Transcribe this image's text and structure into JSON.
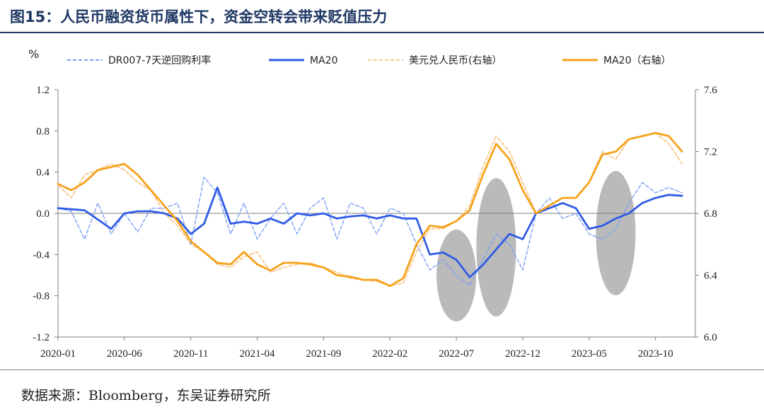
{
  "header": {
    "title": "图15：人民币融资货币属性下，资金空转会带来贬值压力"
  },
  "footer": {
    "source": "数据来源：Bloomberg，东吴证券研究所"
  },
  "colors": {
    "dr007": "#7b9ff5",
    "dr007_ma": "#2f5ce6",
    "fx": "#f7c98c",
    "fx_ma": "#f5a21b",
    "highlight": "#a6a6a6",
    "axis": "#7f7f7f"
  },
  "chart_data": {
    "type": "line",
    "left_unit": "%",
    "x_tick_labels": [
      "2020-01",
      "2020-06",
      "2020-11",
      "2021-04",
      "2021-09",
      "2022-02",
      "2022-07",
      "2022-12",
      "2023-05",
      "2023-10"
    ],
    "x_range": [
      "2020-01",
      "2023-12"
    ],
    "y_left": {
      "min": -1.2,
      "max": 1.2,
      "ticks": [
        "-1.2",
        "-0.8",
        "-0.4",
        "0.0",
        "0.4",
        "0.8",
        "1.2"
      ]
    },
    "y_right": {
      "min": 6.0,
      "max": 7.6,
      "ticks": [
        "6.0",
        "6.4",
        "6.8",
        "7.2",
        "7.6"
      ]
    },
    "legend_position": "top",
    "series": [
      {
        "name": "DR007-7天逆回购利率",
        "axis": "left",
        "style": "dashed",
        "points": [
          [
            "2020-01",
            0.05
          ],
          [
            "2020-02",
            0.02
          ],
          [
            "2020-03",
            -0.25
          ],
          [
            "2020-04",
            0.1
          ],
          [
            "2020-05",
            -0.2
          ],
          [
            "2020-06",
            0.0
          ],
          [
            "2020-07",
            -0.18
          ],
          [
            "2020-08",
            0.05
          ],
          [
            "2020-09",
            0.05
          ],
          [
            "2020-10",
            0.1
          ],
          [
            "2020-11",
            -0.3
          ],
          [
            "2020-12",
            0.35
          ],
          [
            "2021-01",
            0.2
          ],
          [
            "2021-02",
            -0.2
          ],
          [
            "2021-03",
            0.1
          ],
          [
            "2021-04",
            -0.25
          ],
          [
            "2021-05",
            -0.05
          ],
          [
            "2021-06",
            0.1
          ],
          [
            "2021-07",
            -0.2
          ],
          [
            "2021-08",
            0.05
          ],
          [
            "2021-09",
            0.15
          ],
          [
            "2021-10",
            -0.25
          ],
          [
            "2021-11",
            0.1
          ],
          [
            "2021-12",
            0.05
          ],
          [
            "2022-01",
            -0.2
          ],
          [
            "2022-02",
            0.05
          ],
          [
            "2022-03",
            0.0
          ],
          [
            "2022-04",
            -0.3
          ],
          [
            "2022-05",
            -0.55
          ],
          [
            "2022-06",
            -0.45
          ],
          [
            "2022-07",
            -0.6
          ],
          [
            "2022-08",
            -0.7
          ],
          [
            "2022-09",
            -0.45
          ],
          [
            "2022-10",
            -0.2
          ],
          [
            "2022-11",
            -0.3
          ],
          [
            "2022-12",
            -0.55
          ],
          [
            "2023-01",
            0.0
          ],
          [
            "2023-02",
            0.15
          ],
          [
            "2023-03",
            -0.05
          ],
          [
            "2023-04",
            0.0
          ],
          [
            "2023-05",
            -0.2
          ],
          [
            "2023-06",
            -0.25
          ],
          [
            "2023-07",
            -0.15
          ],
          [
            "2023-08",
            0.1
          ],
          [
            "2023-09",
            0.3
          ],
          [
            "2023-10",
            0.2
          ],
          [
            "2023-11",
            0.25
          ],
          [
            "2023-12",
            0.2
          ]
        ]
      },
      {
        "name": "MA20",
        "axis": "left",
        "style": "solid",
        "points": [
          [
            "2020-01",
            0.05
          ],
          [
            "2020-03",
            0.03
          ],
          [
            "2020-05",
            -0.15
          ],
          [
            "2020-06",
            0.0
          ],
          [
            "2020-07",
            0.02
          ],
          [
            "2020-08",
            0.02
          ],
          [
            "2020-09",
            0.0
          ],
          [
            "2020-10",
            -0.05
          ],
          [
            "2020-11",
            -0.2
          ],
          [
            "2020-12",
            -0.1
          ],
          [
            "2021-01",
            0.25
          ],
          [
            "2021-02",
            -0.1
          ],
          [
            "2021-03",
            -0.08
          ],
          [
            "2021-04",
            -0.1
          ],
          [
            "2021-05",
            -0.05
          ],
          [
            "2021-06",
            -0.1
          ],
          [
            "2021-07",
            0.0
          ],
          [
            "2021-08",
            -0.02
          ],
          [
            "2021-09",
            0.0
          ],
          [
            "2021-10",
            -0.05
          ],
          [
            "2021-11",
            -0.03
          ],
          [
            "2021-12",
            -0.02
          ],
          [
            "2022-01",
            -0.05
          ],
          [
            "2022-02",
            -0.02
          ],
          [
            "2022-03",
            -0.05
          ],
          [
            "2022-04",
            -0.05
          ],
          [
            "2022-05",
            -0.4
          ],
          [
            "2022-06",
            -0.38
          ],
          [
            "2022-07",
            -0.45
          ],
          [
            "2022-08",
            -0.62
          ],
          [
            "2022-09",
            -0.5
          ],
          [
            "2022-10",
            -0.35
          ],
          [
            "2022-11",
            -0.2
          ],
          [
            "2022-12",
            -0.25
          ],
          [
            "2023-01",
            0.0
          ],
          [
            "2023-02",
            0.05
          ],
          [
            "2023-03",
            0.1
          ],
          [
            "2023-04",
            0.05
          ],
          [
            "2023-05",
            -0.15
          ],
          [
            "2023-06",
            -0.12
          ],
          [
            "2023-07",
            -0.05
          ],
          [
            "2023-08",
            0.0
          ],
          [
            "2023-09",
            0.1
          ],
          [
            "2023-10",
            0.15
          ],
          [
            "2023-11",
            0.18
          ],
          [
            "2023-12",
            0.17
          ]
        ]
      },
      {
        "name": "美元兑人民币(右轴）",
        "axis": "right",
        "style": "dashed",
        "points": [
          [
            "2020-01",
            6.98
          ],
          [
            "2020-02",
            6.9
          ],
          [
            "2020-03",
            7.05
          ],
          [
            "2020-04",
            7.08
          ],
          [
            "2020-05",
            7.12
          ],
          [
            "2020-06",
            7.08
          ],
          [
            "2020-07",
            7.0
          ],
          [
            "2020-08",
            6.95
          ],
          [
            "2020-09",
            6.8
          ],
          [
            "2020-10",
            6.72
          ],
          [
            "2020-11",
            6.6
          ],
          [
            "2020-12",
            6.55
          ],
          [
            "2021-01",
            6.47
          ],
          [
            "2021-02",
            6.45
          ],
          [
            "2021-03",
            6.52
          ],
          [
            "2021-04",
            6.55
          ],
          [
            "2021-05",
            6.42
          ],
          [
            "2021-06",
            6.45
          ],
          [
            "2021-07",
            6.47
          ],
          [
            "2021-08",
            6.48
          ],
          [
            "2021-09",
            6.45
          ],
          [
            "2021-10",
            6.42
          ],
          [
            "2021-11",
            6.38
          ],
          [
            "2021-12",
            6.37
          ],
          [
            "2022-01",
            6.36
          ],
          [
            "2022-02",
            6.33
          ],
          [
            "2022-03",
            6.35
          ],
          [
            "2022-04",
            6.55
          ],
          [
            "2022-05",
            6.7
          ],
          [
            "2022-06",
            6.7
          ],
          [
            "2022-07",
            6.75
          ],
          [
            "2022-08",
            6.85
          ],
          [
            "2022-09",
            7.1
          ],
          [
            "2022-10",
            7.3
          ],
          [
            "2022-11",
            7.2
          ],
          [
            "2022-12",
            7.0
          ],
          [
            "2023-01",
            6.8
          ],
          [
            "2023-02",
            6.85
          ],
          [
            "2023-03",
            6.9
          ],
          [
            "2023-04",
            6.9
          ],
          [
            "2023-05",
            7.0
          ],
          [
            "2023-06",
            7.2
          ],
          [
            "2023-07",
            7.15
          ],
          [
            "2023-08",
            7.28
          ],
          [
            "2023-09",
            7.3
          ],
          [
            "2023-10",
            7.32
          ],
          [
            "2023-11",
            7.25
          ],
          [
            "2023-12",
            7.12
          ]
        ]
      },
      {
        "name": "MA20（右轴）",
        "axis": "right",
        "style": "solid",
        "points": [
          [
            "2020-01",
            6.99
          ],
          [
            "2020-02",
            6.95
          ],
          [
            "2020-03",
            7.0
          ],
          [
            "2020-04",
            7.08
          ],
          [
            "2020-05",
            7.1
          ],
          [
            "2020-06",
            7.12
          ],
          [
            "2020-07",
            7.05
          ],
          [
            "2020-08",
            6.95
          ],
          [
            "2020-09",
            6.85
          ],
          [
            "2020-10",
            6.75
          ],
          [
            "2020-11",
            6.62
          ],
          [
            "2020-12",
            6.55
          ],
          [
            "2021-01",
            6.48
          ],
          [
            "2021-02",
            6.47
          ],
          [
            "2021-03",
            6.55
          ],
          [
            "2021-04",
            6.47
          ],
          [
            "2021-05",
            6.43
          ],
          [
            "2021-06",
            6.48
          ],
          [
            "2021-07",
            6.48
          ],
          [
            "2021-08",
            6.47
          ],
          [
            "2021-09",
            6.45
          ],
          [
            "2021-10",
            6.4
          ],
          [
            "2021-11",
            6.39
          ],
          [
            "2021-12",
            6.37
          ],
          [
            "2022-01",
            6.37
          ],
          [
            "2022-02",
            6.33
          ],
          [
            "2022-03",
            6.38
          ],
          [
            "2022-04",
            6.6
          ],
          [
            "2022-05",
            6.72
          ],
          [
            "2022-06",
            6.71
          ],
          [
            "2022-07",
            6.75
          ],
          [
            "2022-08",
            6.82
          ],
          [
            "2022-09",
            7.05
          ],
          [
            "2022-10",
            7.25
          ],
          [
            "2022-11",
            7.15
          ],
          [
            "2022-12",
            6.95
          ],
          [
            "2023-01",
            6.8
          ],
          [
            "2023-02",
            6.85
          ],
          [
            "2023-03",
            6.9
          ],
          [
            "2023-04",
            6.9
          ],
          [
            "2023-05",
            7.0
          ],
          [
            "2023-06",
            7.18
          ],
          [
            "2023-07",
            7.2
          ],
          [
            "2023-08",
            7.28
          ],
          [
            "2023-09",
            7.3
          ],
          [
            "2023-10",
            7.32
          ],
          [
            "2023-11",
            7.3
          ],
          [
            "2023-12",
            7.2
          ]
        ]
      }
    ],
    "highlights": [
      {
        "from": "2022-06",
        "to": "2022-08"
      },
      {
        "from": "2022-09",
        "to": "2022-11"
      },
      {
        "from": "2023-06",
        "to": "2023-08"
      }
    ]
  }
}
